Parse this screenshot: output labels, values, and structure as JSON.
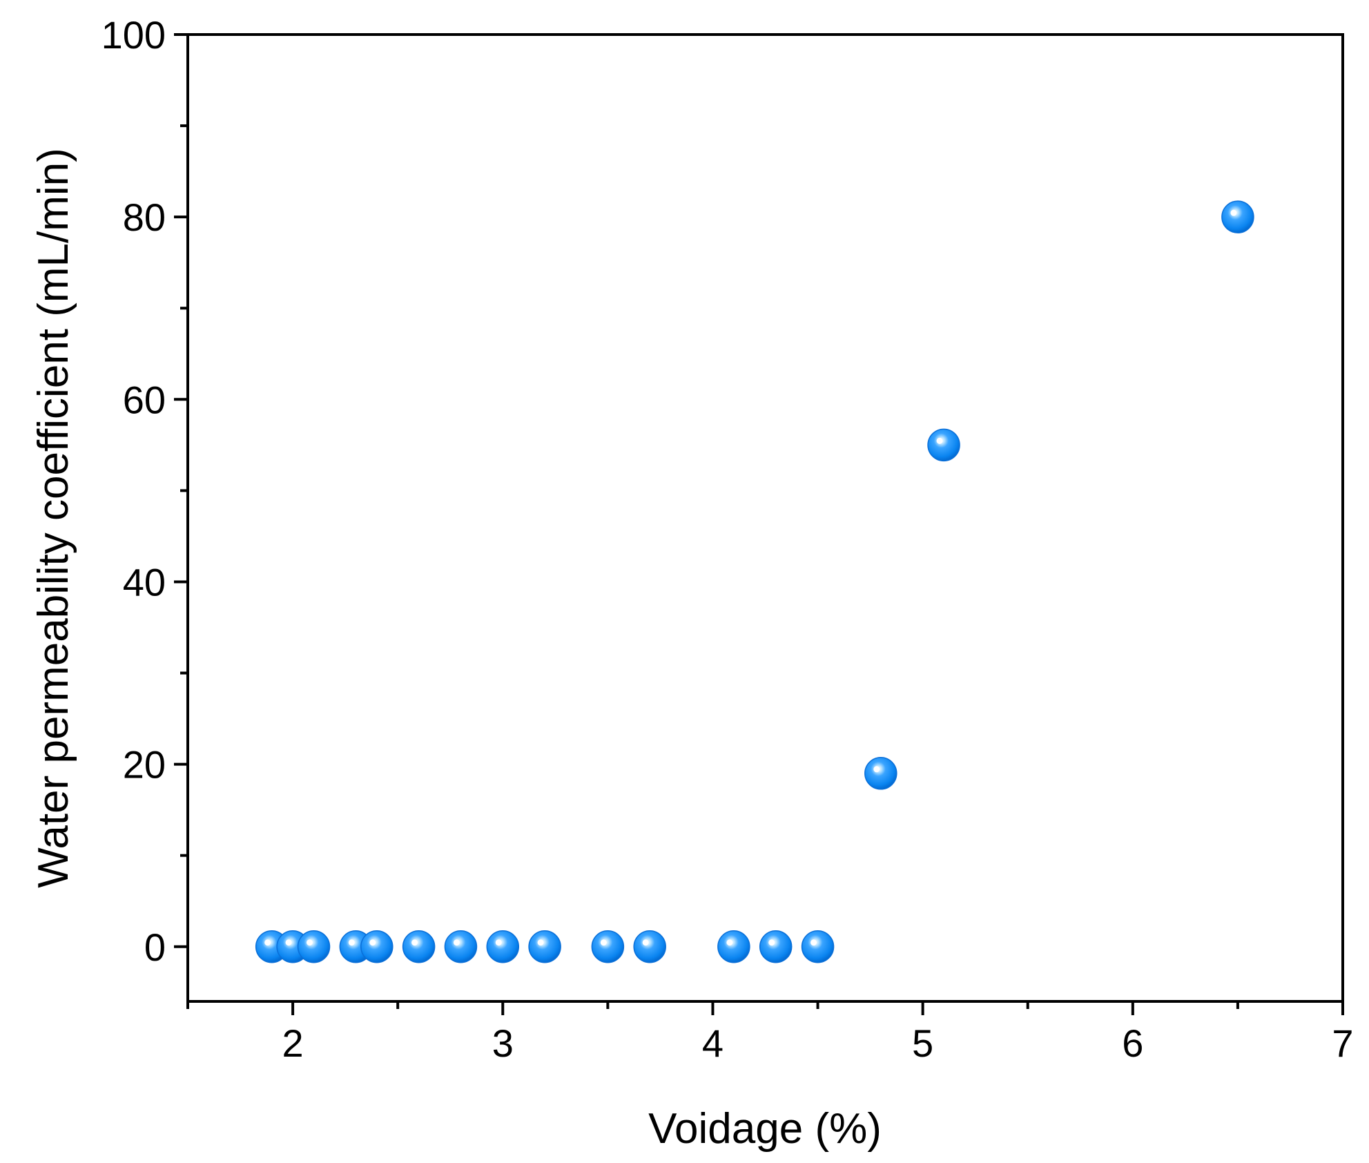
{
  "chart_data": {
    "type": "scatter",
    "title": "",
    "xlabel": "Voidage (%)",
    "ylabel": "Water permeability coefficient (mL/min)",
    "xlim": [
      1.5,
      7
    ],
    "ylim": [
      -6,
      100
    ],
    "x_ticks": [
      2,
      3,
      4,
      5,
      6,
      7
    ],
    "x_tick_labels": [
      "2",
      "3",
      "4",
      "5",
      "6",
      "7"
    ],
    "y_ticks": [
      0,
      20,
      40,
      60,
      80,
      100
    ],
    "y_tick_labels": [
      "0",
      "20",
      "40",
      "60",
      "80",
      "100"
    ],
    "grid": false,
    "legend": "none",
    "marker_color": "#0a84f0",
    "series": [
      {
        "points": [
          {
            "x": 1.9,
            "y": 0
          },
          {
            "x": 2.0,
            "y": 0
          },
          {
            "x": 2.1,
            "y": 0
          },
          {
            "x": 2.3,
            "y": 0
          },
          {
            "x": 2.4,
            "y": 0
          },
          {
            "x": 2.6,
            "y": 0
          },
          {
            "x": 2.8,
            "y": 0
          },
          {
            "x": 3.0,
            "y": 0
          },
          {
            "x": 3.2,
            "y": 0
          },
          {
            "x": 3.5,
            "y": 0
          },
          {
            "x": 3.7,
            "y": 0
          },
          {
            "x": 4.1,
            "y": 0
          },
          {
            "x": 4.3,
            "y": 0
          },
          {
            "x": 4.5,
            "y": 0
          },
          {
            "x": 4.8,
            "y": 19
          },
          {
            "x": 5.1,
            "y": 55
          },
          {
            "x": 6.5,
            "y": 80
          }
        ]
      }
    ]
  }
}
